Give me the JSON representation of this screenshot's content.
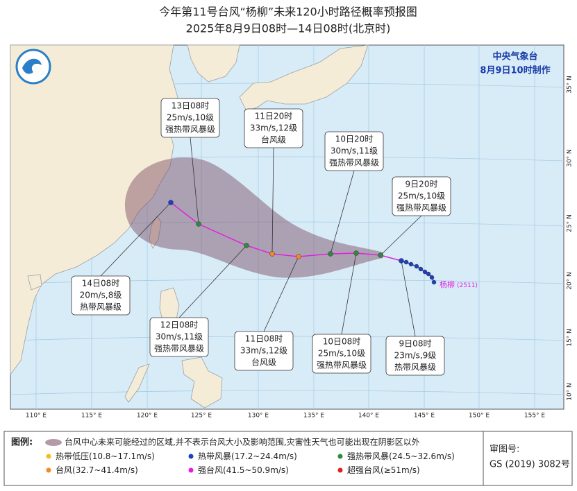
{
  "header": {
    "title": "今年第11号台风“杨柳”未来120小时路径概率预报图",
    "subtitle": "2025年8月9日08时—14日08时(北京时)"
  },
  "agency": {
    "name": "中央气象台",
    "issued": "8月9日10时制作"
  },
  "map": {
    "lon_labels": [
      "110° E",
      "115° E",
      "120° E",
      "125° E",
      "130° E",
      "135° E",
      "140° E",
      "145° E",
      "150° E",
      "155° E"
    ],
    "lat_labels": [
      "35° N",
      "30° N",
      "25° N",
      "20° N",
      "15° N",
      "10° N"
    ],
    "storm_name": "杨柳",
    "storm_id": "(2511)"
  },
  "forecasts": [
    {
      "time": "9日08时",
      "wind": "23m/s,9级",
      "category": "热带风暴级"
    },
    {
      "time": "9日20时",
      "wind": "25m/s,10级",
      "category": "强热带风暴级"
    },
    {
      "time": "10日08时",
      "wind": "25m/s,10级",
      "category": "强热带风暴级"
    },
    {
      "time": "10日20时",
      "wind": "30m/s,11级",
      "category": "强热带风暴级"
    },
    {
      "time": "11日08时",
      "wind": "33m/s,12级",
      "category": "台风级"
    },
    {
      "time": "11日20时",
      "wind": "33m/s,12级",
      "category": "台风级"
    },
    {
      "time": "12日08时",
      "wind": "30m/s,11级",
      "category": "强热带风暴级"
    },
    {
      "time": "13日08时",
      "wind": "25m/s,10级",
      "category": "强热带风暴级"
    },
    {
      "time": "14日08时",
      "wind": "20m/s,8级",
      "category": "热带风暴级"
    }
  ],
  "legend": {
    "title": "图例:",
    "cone": "台风中心未来可能经过的区域,并不表示台风大小及影响范围,灾害性天气也可能出现在阴影区以外",
    "items": [
      {
        "name": "热带低压",
        "range": "(10.8~17.1m/s)",
        "color": "#f0c020"
      },
      {
        "name": "热带风暴",
        "range": "(17.2~24.4m/s)",
        "color": "#1f3fbf"
      },
      {
        "name": "强热带风暴",
        "range": "(24.5~32.6m/s)",
        "color": "#2e8b3a"
      },
      {
        "name": "台风",
        "range": "(32.7~41.4m/s)",
        "color": "#f08a24"
      },
      {
        "name": "强台风",
        "range": "(41.5~50.9m/s)",
        "color": "#e020e0"
      },
      {
        "name": "超强台风",
        "range": "(≥51m/s)",
        "color": "#e02020"
      }
    ]
  },
  "approval": {
    "label": "审图号:",
    "number": "GS (2019) 3082号"
  }
}
